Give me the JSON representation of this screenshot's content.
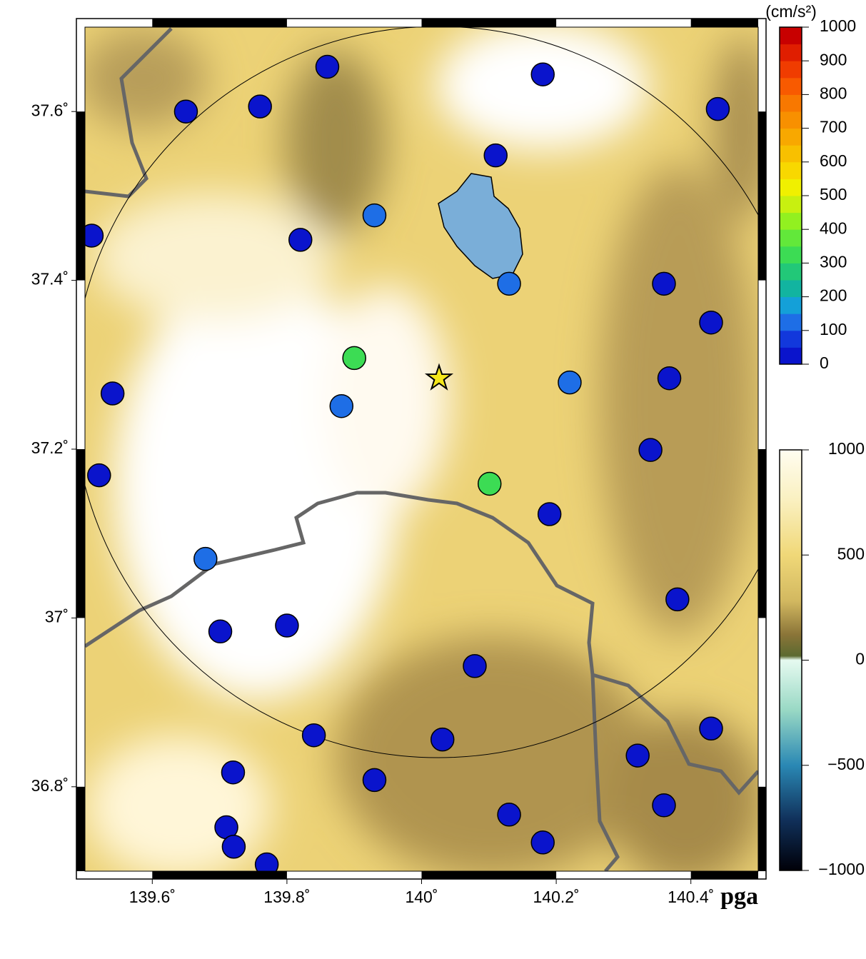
{
  "map": {
    "label": "pga",
    "xlim": [
      139.5,
      140.5
    ],
    "ylim": [
      36.7,
      37.7
    ],
    "xticks": [
      {
        "value": 139.6,
        "label": "139.6˚"
      },
      {
        "value": 139.8,
        "label": "139.8˚"
      },
      {
        "value": 140,
        "label": "140˚"
      },
      {
        "value": 140.2,
        "label": "140.2˚"
      },
      {
        "value": 140.4,
        "label": "140.4˚"
      }
    ],
    "yticks": [
      {
        "value": 36.8,
        "label": "36.8˚"
      },
      {
        "value": 37,
        "label": "37˚"
      },
      {
        "value": 37.2,
        "label": "37.2˚"
      },
      {
        "value": 37.4,
        "label": "37.4˚"
      },
      {
        "value": 37.6,
        "label": "37.6˚"
      }
    ],
    "epicenter": {
      "lon": 140.026,
      "lat": 37.284,
      "color": "#f5e81a"
    },
    "stations": [
      {
        "lon": 139.86,
        "lat": 37.653,
        "pga": 30
      },
      {
        "lon": 140.18,
        "lat": 37.644,
        "pga": 30
      },
      {
        "lon": 139.65,
        "lat": 37.6,
        "pga": 30
      },
      {
        "lon": 139.76,
        "lat": 37.606,
        "pga": 30
      },
      {
        "lon": 140.44,
        "lat": 37.603,
        "pga": 30
      },
      {
        "lon": 140.11,
        "lat": 37.548,
        "pga": 30
      },
      {
        "lon": 139.93,
        "lat": 37.477,
        "pga": 110
      },
      {
        "lon": 139.51,
        "lat": 37.453,
        "pga": 30
      },
      {
        "lon": 139.82,
        "lat": 37.448,
        "pga": 30
      },
      {
        "lon": 140.13,
        "lat": 37.396,
        "pga": 110
      },
      {
        "lon": 140.36,
        "lat": 37.396,
        "pga": 30
      },
      {
        "lon": 140.43,
        "lat": 37.35,
        "pga": 30
      },
      {
        "lon": 139.9,
        "lat": 37.308,
        "pga": 320
      },
      {
        "lon": 140.368,
        "lat": 37.284,
        "pga": 30
      },
      {
        "lon": 140.22,
        "lat": 37.279,
        "pga": 110
      },
      {
        "lon": 139.541,
        "lat": 37.266,
        "pga": 30
      },
      {
        "lon": 139.881,
        "lat": 37.251,
        "pga": 110
      },
      {
        "lon": 140.34,
        "lat": 37.199,
        "pga": 30
      },
      {
        "lon": 139.521,
        "lat": 37.169,
        "pga": 30
      },
      {
        "lon": 140.101,
        "lat": 37.159,
        "pga": 320
      },
      {
        "lon": 140.19,
        "lat": 37.123,
        "pga": 30
      },
      {
        "lon": 139.679,
        "lat": 37.07,
        "pga": 110
      },
      {
        "lon": 140.38,
        "lat": 37.022,
        "pga": 30
      },
      {
        "lon": 139.701,
        "lat": 36.984,
        "pga": 30
      },
      {
        "lon": 139.8,
        "lat": 36.991,
        "pga": 30
      },
      {
        "lon": 140.079,
        "lat": 36.943,
        "pga": 30
      },
      {
        "lon": 140.43,
        "lat": 36.869,
        "pga": 30
      },
      {
        "lon": 139.84,
        "lat": 36.861,
        "pga": 30
      },
      {
        "lon": 140.031,
        "lat": 36.856,
        "pga": 30
      },
      {
        "lon": 140.321,
        "lat": 36.837,
        "pga": 30
      },
      {
        "lon": 139.72,
        "lat": 36.817,
        "pga": 30
      },
      {
        "lon": 139.93,
        "lat": 36.808,
        "pga": 30
      },
      {
        "lon": 140.36,
        "lat": 36.778,
        "pga": 30
      },
      {
        "lon": 140.13,
        "lat": 36.767,
        "pga": 30
      },
      {
        "lon": 139.71,
        "lat": 36.752,
        "pga": 30
      },
      {
        "lon": 140.18,
        "lat": 36.734,
        "pga": 30
      },
      {
        "lon": 139.721,
        "lat": 36.729,
        "pga": 30
      },
      {
        "lon": 139.77,
        "lat": 36.708,
        "pga": 30
      }
    ],
    "pga_colorbar": {
      "unit": "(cm/s²)",
      "lim": [
        0,
        1000
      ],
      "ticks": [
        0,
        100,
        200,
        300,
        400,
        500,
        600,
        700,
        800,
        900,
        1000
      ],
      "colors": [
        "#0a14cc",
        "#1238dc",
        "#1e6ee6",
        "#14a0d8",
        "#12b4a0",
        "#22c878",
        "#3cdc54",
        "#62e83a",
        "#92f020",
        "#c8f010",
        "#f0f000",
        "#f8d800",
        "#f8c000",
        "#f8a800",
        "#f89000",
        "#f87800",
        "#f85a00",
        "#f03c00",
        "#e01e00",
        "#c80000"
      ]
    },
    "elevation_colorbar": {
      "lim": [
        -1000,
        1000
      ],
      "ticks": [
        {
          "value": -1000,
          "label": "−1000"
        },
        {
          "value": -500,
          "label": "−500"
        },
        0,
        500,
        1000
      ]
    }
  }
}
